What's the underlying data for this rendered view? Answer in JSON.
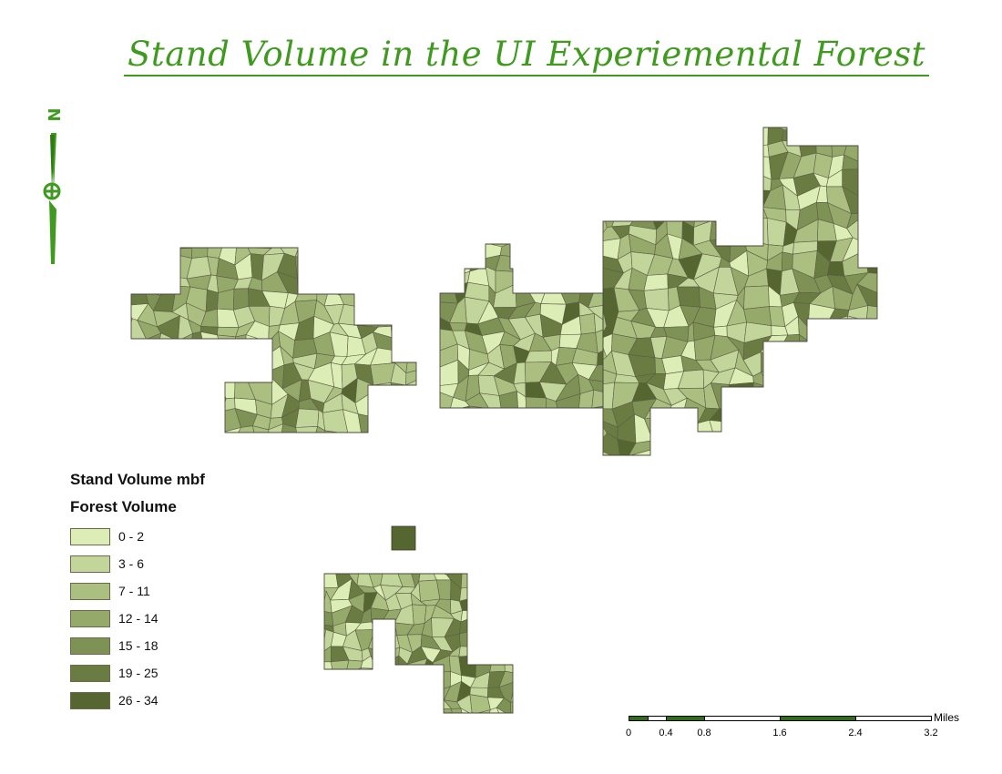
{
  "title": "Stand Volume in the UI Experiemental Forest",
  "north_arrow": {
    "letter": "N",
    "icon": "north-arrow-icon"
  },
  "legend": {
    "title": "Stand Volume mbf",
    "subtitle": "Forest Volume",
    "classes": [
      {
        "label": "0 - 2",
        "color": "#dcedb5"
      },
      {
        "label": "3 - 6",
        "color": "#c2d59a"
      },
      {
        "label": "7 - 11",
        "color": "#abbf80"
      },
      {
        "label": "12 - 14",
        "color": "#95a96a"
      },
      {
        "label": "15 - 18",
        "color": "#7f9255"
      },
      {
        "label": "19 - 25",
        "color": "#6b7c43"
      },
      {
        "label": "26 - 34",
        "color": "#566630"
      }
    ]
  },
  "scale_bar": {
    "unit": "Miles",
    "ticks": [
      "0",
      "0.4",
      "0.8",
      "1.6",
      "2.4",
      "3.2"
    ],
    "color_dark": "#2f6e12",
    "color_light": "#ffffff"
  }
}
